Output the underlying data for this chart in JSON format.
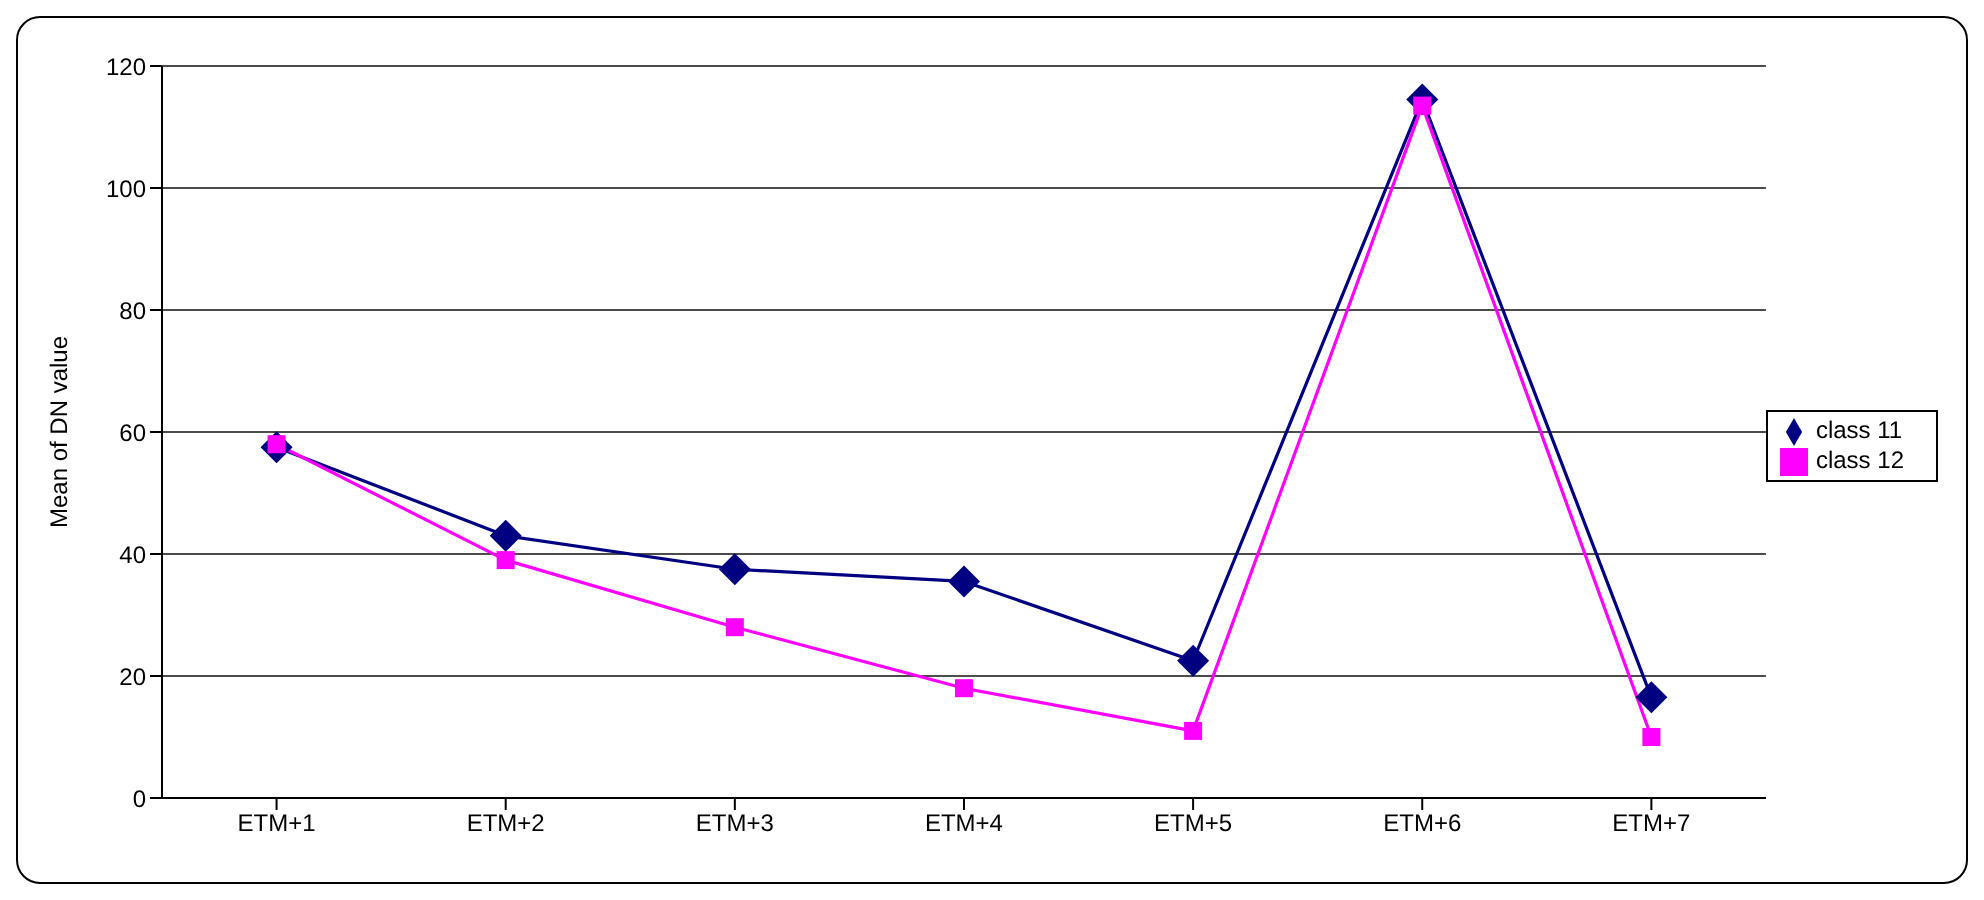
{
  "chart_data": {
    "type": "line",
    "ylabel": "Mean of DN value",
    "categories": [
      "ETM+1",
      "ETM+2",
      "ETM+3",
      "ETM+4",
      "ETM+5",
      "ETM+6",
      "ETM+7"
    ],
    "series": [
      {
        "name": "class 11",
        "color": "#000080",
        "marker": "diamond",
        "values": [
          57.5,
          43,
          37.5,
          35.5,
          22.5,
          114.5,
          16.5
        ]
      },
      {
        "name": "class 12",
        "color": "#ff00ff",
        "marker": "square",
        "values": [
          58,
          39,
          28,
          18,
          11,
          113.5,
          10
        ]
      }
    ],
    "ylim": [
      0,
      120
    ],
    "yticks": [
      0,
      20,
      40,
      60,
      80,
      100,
      120
    ],
    "grid": "y",
    "legend": "right",
    "line_style": "solid"
  }
}
